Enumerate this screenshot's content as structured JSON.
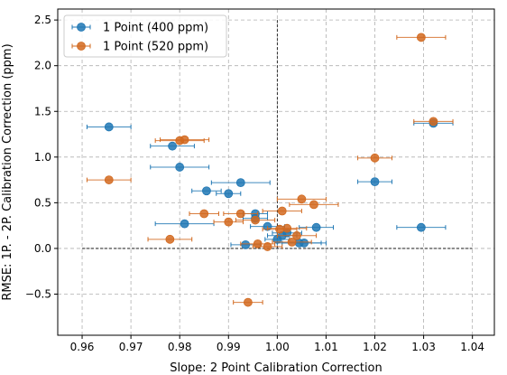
{
  "chart_data": {
    "type": "scatter",
    "xlabel": "Slope: 2 Point Calibration Correction",
    "ylabel": "RMSE: 1P. - 2P. Calibration Correction (ppm)",
    "xlim": [
      0.955,
      1.0445
    ],
    "ylim": [
      -0.95,
      2.62
    ],
    "xticks": [
      0.96,
      0.97,
      0.98,
      0.99,
      1.0,
      1.01,
      1.02,
      1.03,
      1.04
    ],
    "xtick_labels": [
      "0.96",
      "0.97",
      "0.98",
      "0.99",
      "1.00",
      "1.01",
      "1.02",
      "1.03",
      "1.04"
    ],
    "yticks": [
      -0.5,
      0.0,
      0.5,
      1.0,
      1.5,
      2.0,
      2.5
    ],
    "ytick_labels": [
      "−0.5",
      "0.0",
      "0.5",
      "1.0",
      "1.5",
      "2.0",
      "2.5"
    ],
    "grid": true,
    "legend_position": "top-left",
    "reference_lines": {
      "vertical_x": 1.0,
      "horizontal_y": 0.0,
      "vertical_y_range": [
        0.0,
        2.5
      ],
      "horizontal_x_range": [
        0.96,
        1.04
      ]
    },
    "series": [
      {
        "name": "1 Point (400 ppm)",
        "color": "#1f77b4",
        "points": [
          {
            "x": 0.9655,
            "y": 1.33,
            "xerr": 0.0045
          },
          {
            "x": 0.9785,
            "y": 1.12,
            "xerr": 0.0045
          },
          {
            "x": 0.98,
            "y": 0.89,
            "xerr": 0.006
          },
          {
            "x": 0.9855,
            "y": 0.63,
            "xerr": 0.003
          },
          {
            "x": 0.99,
            "y": 0.6,
            "xerr": 0.0025
          },
          {
            "x": 0.9925,
            "y": 0.72,
            "xerr": 0.006
          },
          {
            "x": 0.9955,
            "y": 0.38,
            "xerr": 0.0025
          },
          {
            "x": 0.9955,
            "y": 0.33,
            "xerr": 0.0025
          },
          {
            "x": 0.998,
            "y": 0.24,
            "xerr": 0.0035
          },
          {
            "x": 0.981,
            "y": 0.27,
            "xerr": 0.006
          },
          {
            "x": 0.9935,
            "y": 0.04,
            "xerr": 0.003
          },
          {
            "x": 1.0,
            "y": 0.1,
            "xerr": 0.0025
          },
          {
            "x": 1.001,
            "y": 0.14,
            "xerr": 0.003
          },
          {
            "x": 1.002,
            "y": 0.17,
            "xerr": 0.003
          },
          {
            "x": 1.0045,
            "y": 0.06,
            "xerr": 0.0045
          },
          {
            "x": 1.0055,
            "y": 0.06,
            "xerr": 0.0045
          },
          {
            "x": 1.008,
            "y": 0.23,
            "xerr": 0.0035
          },
          {
            "x": 1.02,
            "y": 0.73,
            "xerr": 0.0035
          },
          {
            "x": 1.0295,
            "y": 0.23,
            "xerr": 0.005
          },
          {
            "x": 1.032,
            "y": 1.37,
            "xerr": 0.004
          }
        ]
      },
      {
        "name": "1 Point (520 ppm)",
        "color": "#d2691e",
        "points": [
          {
            "x": 0.9655,
            "y": 0.75,
            "xerr": 0.0045
          },
          {
            "x": 0.98,
            "y": 1.18,
            "xerr": 0.005
          },
          {
            "x": 0.981,
            "y": 1.19,
            "xerr": 0.005
          },
          {
            "x": 0.978,
            "y": 0.1,
            "xerr": 0.0045
          },
          {
            "x": 0.985,
            "y": 0.38,
            "xerr": 0.003
          },
          {
            "x": 0.99,
            "y": 0.29,
            "xerr": 0.003
          },
          {
            "x": 0.9925,
            "y": 0.38,
            "xerr": 0.0035
          },
          {
            "x": 0.9955,
            "y": 0.31,
            "xerr": 0.004
          },
          {
            "x": 0.996,
            "y": 0.05,
            "xerr": 0.0035
          },
          {
            "x": 0.998,
            "y": 0.02,
            "xerr": 0.003
          },
          {
            "x": 1.0005,
            "y": 0.21,
            "xerr": 0.0035
          },
          {
            "x": 1.001,
            "y": 0.41,
            "xerr": 0.004
          },
          {
            "x": 1.002,
            "y": 0.22,
            "xerr": 0.004
          },
          {
            "x": 1.004,
            "y": 0.14,
            "xerr": 0.004
          },
          {
            "x": 1.003,
            "y": 0.07,
            "xerr": 0.004
          },
          {
            "x": 1.005,
            "y": 0.54,
            "xerr": 0.005
          },
          {
            "x": 1.0075,
            "y": 0.48,
            "xerr": 0.005
          },
          {
            "x": 1.02,
            "y": 0.99,
            "xerr": 0.0035
          },
          {
            "x": 1.032,
            "y": 1.39,
            "xerr": 0.004
          },
          {
            "x": 1.0295,
            "y": 2.31,
            "xerr": 0.005
          },
          {
            "x": 0.994,
            "y": -0.59,
            "xerr": 0.003
          }
        ]
      }
    ]
  }
}
